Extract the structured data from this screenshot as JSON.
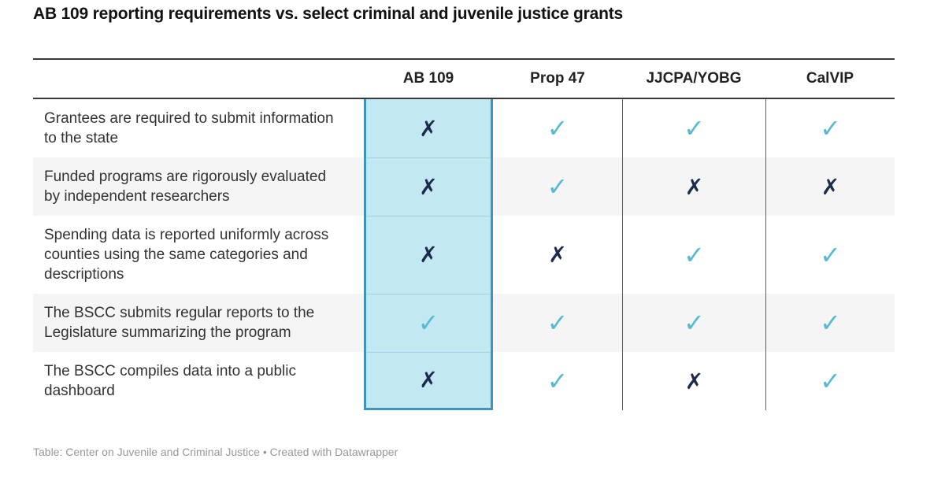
{
  "chart_data": {
    "type": "table",
    "title": "AB 109 reporting requirements vs. select criminal and juvenile justice grants",
    "columns": [
      "AB 109",
      "Prop 47",
      "JJCPA/YOBG",
      "CalVIP"
    ],
    "highlighted_column": "AB 109",
    "rows": [
      {
        "label": "Grantees are required to submit information to the state",
        "values": [
          "no",
          "yes",
          "yes",
          "yes"
        ]
      },
      {
        "label": "Funded programs are rigorously evaluated by independent researchers",
        "values": [
          "no",
          "yes",
          "no",
          "no"
        ]
      },
      {
        "label": "Spending data is reported uniformly across counties using the same categories and descriptions",
        "values": [
          "no",
          "no",
          "yes",
          "yes"
        ]
      },
      {
        "label": "The BSCC submits regular reports to the Legislature summarizing the program",
        "values": [
          "yes",
          "yes",
          "yes",
          "yes"
        ]
      },
      {
        "label": "The BSCC compiles data into a public dashboard",
        "values": [
          "no",
          "yes",
          "no",
          "yes"
        ]
      }
    ],
    "legend_position": "none",
    "grid": "column-separators"
  },
  "footer": {
    "text": "Table: Center on Juvenile and Criminal Justice • Created with Datawrapper"
  },
  "glyphs": {
    "check": "✓",
    "cross": "✗"
  },
  "colors": {
    "check": "#58b9d0",
    "cross": "#1c2b4d",
    "highlight_bg": "#c2e8f1",
    "highlight_border": "#3f94be",
    "rule": "#3a3a3a",
    "separator": "#5e5e5e",
    "row_alt_bg": "#f5f5f5",
    "label_text": "#333333",
    "header_text": "#222222",
    "footer_text": "#989898"
  }
}
